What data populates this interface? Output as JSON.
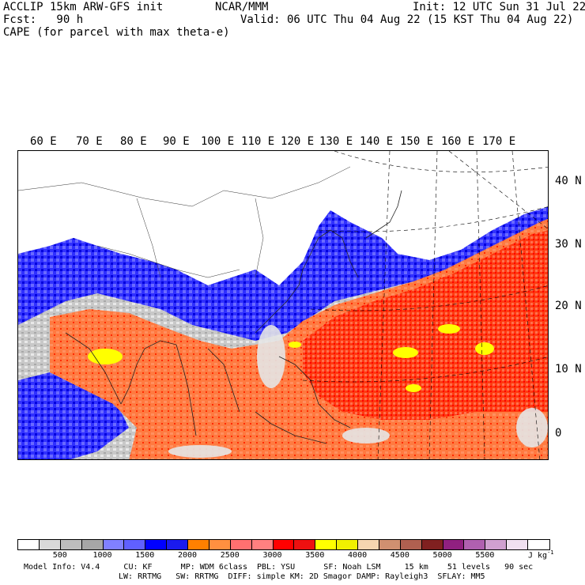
{
  "header": {
    "line1_left": "ACCLIP 15km ARW-GFS init",
    "line1_center": "NCAR/MMM",
    "line1_right": "Init: 12 UTC Sun 31 Jul 22",
    "line2_left": "Fcst:   90 h",
    "line2_right": "Valid: 06 UTC Thu 04 Aug 22 (15 KST Thu 04 Aug 22)",
    "line3": "CAPE (for parcel with max theta-e)"
  },
  "map": {
    "longitude_labels": [
      "60 E",
      "70 E",
      "80 E",
      "90 E",
      "100 E",
      "110 E",
      "120 E",
      "130 E",
      "140 E",
      "150 E",
      "160 E",
      "170 E"
    ],
    "latitude_labels": [
      "40 N",
      "30 N",
      "20 N",
      "10 N",
      "0"
    ]
  },
  "colorbar": {
    "colors": [
      "#ffffff",
      "#d9d9d9",
      "#bdbdbd",
      "#a6a6a6",
      "#8080ff",
      "#6060ff",
      "#0000ff",
      "#1a1aee",
      "#ff8000",
      "#ff9040",
      "#ff7070",
      "#ff8080",
      "#ff0000",
      "#ee1010",
      "#ffff00",
      "#f0f000",
      "#f5d5b0",
      "#d09070",
      "#b06050",
      "#802020",
      "#902080",
      "#b060b0",
      "#d0a0d0",
      "#f0e0f0",
      "#ffffff"
    ],
    "tick_labels": [
      "500",
      "1000",
      "1500",
      "2000",
      "2500",
      "3000",
      "3500",
      "4000",
      "4500",
      "5000",
      "5500"
    ],
    "units": "J kg",
    "units_exp": "-1"
  },
  "footer": {
    "line1": "Model Info: V4.4     CU: KF      MP: WDM 6class  PBL: YSU      SF: Noah LSM     15 km    51 levels   90 sec",
    "line2": "LW: RRTMG   SW: RRTMG  DIFF: simple KM: 2D Smagor DAMP: Rayleigh3  SFLAY: MM5"
  }
}
